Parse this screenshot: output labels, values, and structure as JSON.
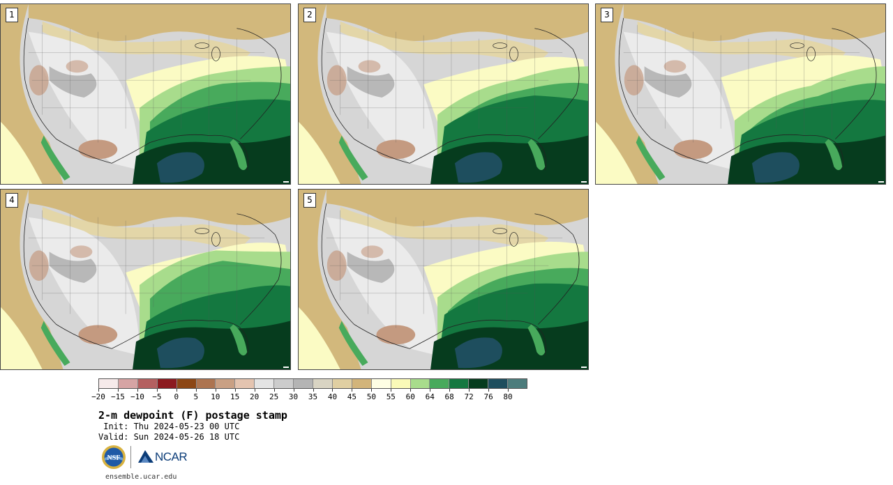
{
  "panels": [
    {
      "label": "1"
    },
    {
      "label": "2"
    },
    {
      "label": "3"
    },
    {
      "label": "4"
    },
    {
      "label": "5"
    }
  ],
  "colorbar": {
    "colors": [
      "#f6eaea",
      "#d6a4a4",
      "#b46060",
      "#8c1a1f",
      "#8c4614",
      "#ad7450",
      "#c9a084",
      "#e4c4b0",
      "#e4e4e4",
      "#cccccc",
      "#b4b4b4",
      "#d9d4c3",
      "#e0cfa2",
      "#d2b47a",
      "#fefee4",
      "#fafab8",
      "#a8dc8c",
      "#48aa5c",
      "#147840",
      "#063c1e",
      "#1e4e5e",
      "#4c7c7c"
    ],
    "tick_labels": [
      "−20",
      "−15",
      "−10",
      "−5",
      "0",
      "5",
      "10",
      "15",
      "20",
      "25",
      "30",
      "35",
      "40",
      "45",
      "50",
      "55",
      "60",
      "64",
      "68",
      "72",
      "76",
      "80"
    ]
  },
  "map_colors": {
    "land_gray": "#d6d6d6",
    "light_gray": "#ebebeb",
    "mid_gray": "#b8b8b8",
    "tan": "#d2b87c",
    "light_tan": "#e3d6a8",
    "brown": "#c49a80",
    "yellow": "#fbfbc4",
    "light_green": "#a8dc8c",
    "green": "#48aa5c",
    "dark_green": "#147840",
    "darkest_green": "#063c1e",
    "teal": "#1e4e5e"
  },
  "title": "2-m dewpoint (F) postage stamp",
  "init": " Init: Thu 2024-05-23 00 UTC",
  "valid": "Valid: Sun 2024-05-26 18 UTC",
  "logos": {
    "nsf_text": "NSF",
    "ncar_text": "NCAR",
    "url": "ensemble.ucar.edu"
  }
}
